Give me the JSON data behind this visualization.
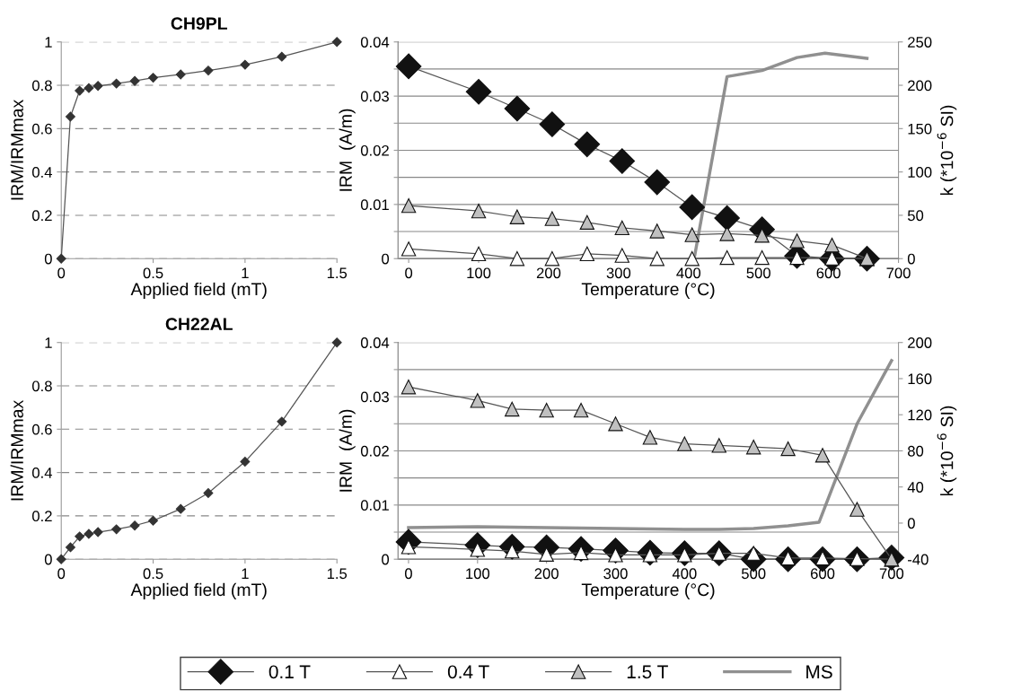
{
  "chart_data": [
    {
      "type": "line",
      "title": "CH9PL",
      "xlabel": "Applied field (mT)",
      "ylabel": "IRM/IRMmax",
      "marker": "diamond",
      "grid": "y",
      "line_style": "solid",
      "xlim": [
        0,
        1.5
      ],
      "xticks": [
        0,
        0.5,
        1,
        1.5
      ],
      "ylim": [
        0,
        1
      ],
      "yticks": [
        0,
        0.2,
        0.4,
        0.6,
        0.8,
        1
      ],
      "x": [
        0,
        0.05,
        0.1,
        0.15,
        0.2,
        0.3,
        0.4,
        0.5,
        0.65,
        0.8,
        1,
        1.2,
        1.5
      ],
      "series": [
        {
          "color": "#333333",
          "values": [
            0,
            0.655,
            0.775,
            0.787,
            0.797,
            0.808,
            0.82,
            0.835,
            0.85,
            0.868,
            0.895,
            0.932,
            1.0
          ]
        }
      ]
    },
    {
      "type": "line",
      "xlabel": "Temperature (°C)",
      "ylabel": "IRM  (A/m)",
      "y2label": "k (*10$^{−6}$ SI)",
      "grid": "y",
      "legend": "bottom",
      "xlim": [
        -15,
        700
      ],
      "xticks": [
        0,
        100,
        200,
        300,
        400,
        500,
        600,
        700
      ],
      "ylim": [
        0,
        0.04
      ],
      "yticks": [
        0,
        {
          "value": 0.005,
          "label": null
        },
        0.01,
        {
          "value": 0.015,
          "label": null
        },
        0.02,
        {
          "value": 0.025,
          "label": null
        },
        0.03,
        {
          "value": 0.035,
          "label": null
        },
        0.04
      ],
      "y2lim": [
        0,
        250
      ],
      "y2ticks": [
        0,
        50,
        100,
        150,
        200,
        250
      ],
      "x": [
        0,
        100,
        155,
        205,
        255,
        305,
        355,
        405,
        455,
        505,
        555,
        605,
        655
      ],
      "series": [
        {
          "name": "0.1 T",
          "color": "#111111",
          "marker": "diamond",
          "values": [
            0.0355,
            0.0308,
            0.0277,
            0.0248,
            0.0211,
            0.018,
            0.0141,
            0.0095,
            0.0075,
            0.0054,
            0.0005,
            0,
            0
          ]
        },
        {
          "name": "0.4 T",
          "color": "#ffffff",
          "marker": "triangle",
          "values": [
            0.0018,
            0.0009,
            0,
            0,
            0.0009,
            0.0006,
            0,
            0,
            0.0002,
            0.0002,
            0.0002,
            0.0001,
            0
          ]
        },
        {
          "name": "1.5 T",
          "color": "#c0c0c0",
          "marker": "triangle",
          "values": [
            0.0098,
            0.0088,
            0.0077,
            0.0074,
            0.0067,
            0.0057,
            0.0051,
            0.0044,
            0.0046,
            0.0043,
            0.0033,
            0.0025,
            0
          ]
        },
        {
          "name": "MS",
          "color": "#909090",
          "marker": "none",
          "axis": "y2",
          "x": [
            408,
            455,
            505,
            555,
            595,
            655
          ],
          "values": [
            0,
            210,
            217,
            232,
            237,
            231
          ]
        }
      ]
    },
    {
      "type": "line",
      "title": "CH22AL",
      "xlabel": "Applied field (mT)",
      "ylabel": "IRM/IRMmax",
      "marker": "diamond",
      "grid": "y",
      "line_style": "solid",
      "xlim": [
        0,
        1.5
      ],
      "xticks": [
        0,
        0.5,
        1,
        1.5
      ],
      "ylim": [
        0,
        1
      ],
      "yticks": [
        0,
        0.2,
        0.4,
        0.6,
        0.8,
        1
      ],
      "x": [
        0,
        0.05,
        0.1,
        0.15,
        0.2,
        0.3,
        0.4,
        0.5,
        0.65,
        0.8,
        1,
        1.2,
        1.5
      ],
      "series": [
        {
          "color": "#333333",
          "values": [
            0,
            0.055,
            0.105,
            0.117,
            0.125,
            0.138,
            0.155,
            0.178,
            0.232,
            0.305,
            0.45,
            0.635,
            1.0
          ]
        }
      ]
    },
    {
      "type": "line",
      "xlabel": "Temperature (°C)",
      "ylabel": "IRM  (A/m)",
      "y2label": "k (*10$^{−6}$ SI)",
      "grid": "y",
      "legend": "bottom",
      "xlim": [
        -15,
        710
      ],
      "xticks": [
        0,
        100,
        200,
        300,
        400,
        500,
        600,
        700
      ],
      "ylim": [
        0,
        0.04
      ],
      "yticks": [
        0,
        {
          "value": 0.005,
          "label": null
        },
        0.01,
        {
          "value": 0.015,
          "label": null
        },
        0.02,
        {
          "value": 0.025,
          "label": null
        },
        0.03,
        {
          "value": 0.035,
          "label": null
        },
        0.04
      ],
      "y2lim": [
        -40,
        200
      ],
      "y2ticks": [
        -40,
        0,
        40,
        80,
        120,
        160,
        200
      ],
      "x": [
        0,
        100,
        150,
        200,
        250,
        300,
        350,
        400,
        450,
        500,
        550,
        600,
        650,
        700
      ],
      "series": [
        {
          "name": "0.1 T",
          "color": "#111111",
          "marker": "diamond",
          "values": [
            0.0032,
            0.0026,
            0.0023,
            0.0022,
            0.0019,
            0.0016,
            0.0012,
            0.0011,
            0.0011,
            0,
            0,
            0,
            0,
            0.0003
          ]
        },
        {
          "name": "0.4 T",
          "color": "#ffffff",
          "marker": "triangle",
          "values": [
            0.0023,
            0.0018,
            0.0015,
            0.0009,
            0.0012,
            0.0008,
            0.0008,
            0.0008,
            0.0011,
            0.0011,
            0.0002,
            0.0002,
            0.0001,
            0
          ]
        },
        {
          "name": "1.5 T",
          "color": "#c0c0c0",
          "marker": "triangle",
          "values": [
            0.0318,
            0.0293,
            0.0277,
            0.0275,
            0.0275,
            0.025,
            0.0225,
            0.0213,
            0.021,
            0.0207,
            0.0204,
            0.0192,
            0.0092,
            0
          ]
        },
        {
          "name": "MS",
          "color": "#909090",
          "marker": "none",
          "axis": "y2",
          "x": [
            0,
            100,
            200,
            300,
            400,
            450,
            500,
            550,
            595,
            650,
            700
          ],
          "values": [
            -5,
            -4,
            -5,
            -6,
            -7,
            -7,
            -6,
            -3,
            1,
            110,
            180
          ]
        }
      ]
    }
  ]
}
